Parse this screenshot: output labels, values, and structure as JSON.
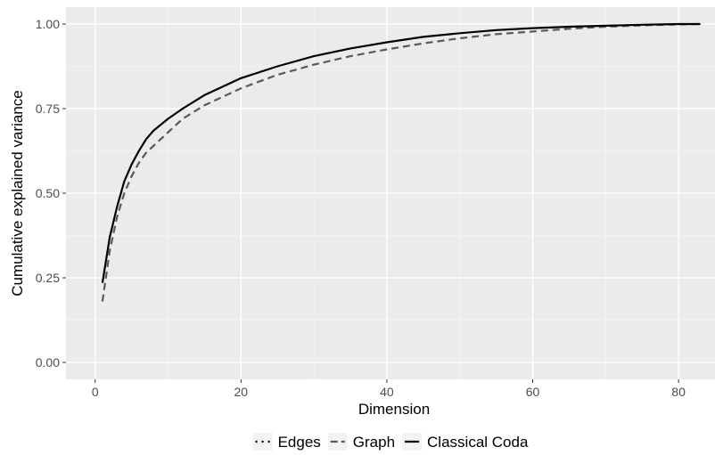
{
  "chart_data": {
    "type": "line",
    "title": "",
    "xlabel": "Dimension",
    "ylabel": "Cumulative  explained variance",
    "xlim": [
      -4,
      85
    ],
    "ylim": [
      -0.05,
      1.05
    ],
    "x_ticks": [
      0,
      20,
      40,
      60,
      80
    ],
    "x_tick_labels": [
      "0",
      "20",
      "40",
      "60",
      "80"
    ],
    "y_ticks": [
      0,
      0.25,
      0.5,
      0.75,
      1.0
    ],
    "y_tick_labels": [
      "0.00",
      "0.25",
      "0.50",
      "0.75",
      "1.00"
    ],
    "grid": true,
    "legend_position": "bottom",
    "series": [
      {
        "name": "Edges",
        "linetype": "dotted",
        "color": "#000000",
        "x": [],
        "y": []
      },
      {
        "name": "Graph",
        "linetype": "dashed",
        "color": "#595959",
        "x": [
          1,
          2,
          3,
          4,
          5,
          6,
          7,
          8,
          10,
          12,
          15,
          18,
          20,
          25,
          30,
          35,
          40,
          45,
          50,
          55,
          60,
          65,
          70,
          75,
          80,
          83
        ],
        "y": [
          0.18,
          0.33,
          0.43,
          0.5,
          0.55,
          0.59,
          0.62,
          0.64,
          0.68,
          0.72,
          0.76,
          0.79,
          0.81,
          0.85,
          0.88,
          0.905,
          0.925,
          0.943,
          0.958,
          0.97,
          0.978,
          0.986,
          0.992,
          0.996,
          0.999,
          1.0
        ]
      },
      {
        "name": "Classical Coda",
        "linetype": "solid",
        "color": "#000000",
        "x": [
          1,
          2,
          3,
          4,
          5,
          6,
          7,
          8,
          10,
          12,
          15,
          18,
          20,
          25,
          30,
          35,
          40,
          45,
          50,
          55,
          60,
          65,
          70,
          75,
          80,
          83
        ],
        "y": [
          0.235,
          0.37,
          0.46,
          0.535,
          0.585,
          0.625,
          0.66,
          0.685,
          0.72,
          0.75,
          0.79,
          0.82,
          0.84,
          0.875,
          0.905,
          0.928,
          0.946,
          0.962,
          0.973,
          0.982,
          0.988,
          0.992,
          0.995,
          0.998,
          1.0,
          1.0
        ]
      }
    ]
  }
}
